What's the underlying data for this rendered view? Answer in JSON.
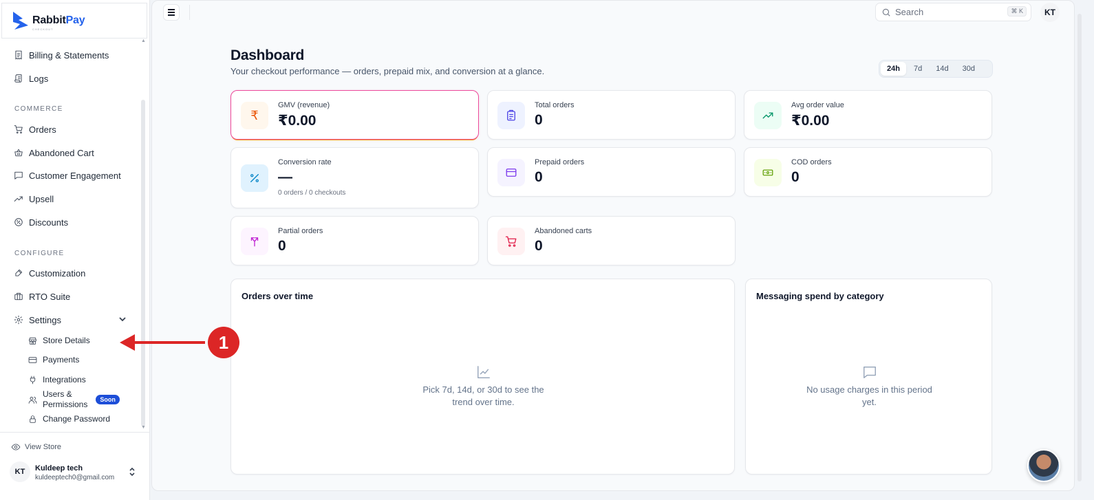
{
  "brand": {
    "name_part1": "Rabbit",
    "name_part2": "Pay",
    "tagline": "CHECKOUT"
  },
  "sidebar": {
    "top_items": [
      {
        "label": "Billing & Statements",
        "icon": "receipt-icon"
      },
      {
        "label": "Logs",
        "icon": "scroll-icon"
      }
    ],
    "commerce_label": "COMMERCE",
    "commerce_items": [
      {
        "label": "Orders",
        "icon": "cart-icon"
      },
      {
        "label": "Abandoned Cart",
        "icon": "basket-icon"
      },
      {
        "label": "Customer Engagement",
        "icon": "message-square-icon"
      },
      {
        "label": "Upsell",
        "icon": "trending-up-icon"
      },
      {
        "label": "Discounts",
        "icon": "badge-percent-icon"
      }
    ],
    "configure_label": "CONFIGURE",
    "configure_items": [
      {
        "label": "Customization",
        "icon": "brush-icon"
      },
      {
        "label": "RTO Suite",
        "icon": "briefcase-icon"
      },
      {
        "label": "Settings",
        "icon": "gear-icon"
      }
    ],
    "settings_sub": [
      {
        "label": "Store Details",
        "icon": "store-icon"
      },
      {
        "label": "Payments",
        "icon": "credit-card-icon"
      },
      {
        "label": "Integrations",
        "icon": "plug-icon"
      },
      {
        "label": "Users &",
        "label2": "Permissions",
        "icon": "users-icon",
        "badge": "Soon"
      },
      {
        "label": "Change Password",
        "icon": "lock-icon"
      }
    ],
    "view_store": "View Store",
    "user": {
      "initials": "KT",
      "name": "Kuldeep tech",
      "email": "kuldeeptech0@gmail.com"
    }
  },
  "topbar": {
    "search_placeholder": "Search",
    "search_shortcut": "⌘ K",
    "avatar_initials": "KT"
  },
  "dashboard": {
    "title": "Dashboard",
    "subtitle": "Your checkout performance — orders, prepaid mix, and conversion at a glance.",
    "ranges": [
      "24h",
      "7d",
      "14d",
      "30d"
    ],
    "active_range": "24h",
    "kpis": [
      {
        "label": "GMV (revenue)",
        "value": "₹0.00",
        "icon": "rupee-icon",
        "color": "#ea580c",
        "bg": "#fff7ed"
      },
      {
        "label": "Total orders",
        "value": "0",
        "icon": "clipboard-icon",
        "color": "#4f46e5",
        "bg": "#eef2ff"
      },
      {
        "label": "Avg order value",
        "value": "₹0.00",
        "icon": "trending-up-icon",
        "color": "#059669",
        "bg": "#ecfdf5"
      },
      {
        "label": "Conversion rate",
        "value": "—",
        "note": "0 orders / 0 checkouts",
        "icon": "percent-icon",
        "color": "#0284c7",
        "bg": "#e0f2fe"
      },
      {
        "label": "Prepaid orders",
        "value": "0",
        "icon": "credit-card-icon",
        "color": "#7c3aed",
        "bg": "#f5f3ff"
      },
      {
        "label": "COD orders",
        "value": "0",
        "icon": "banknote-icon",
        "color": "#65a30d",
        "bg": "#f7fee7"
      },
      {
        "label": "Partial orders",
        "value": "0",
        "icon": "split-icon",
        "color": "#c026d3",
        "bg": "#fdf4ff"
      },
      {
        "label": "Abandoned carts",
        "value": "0",
        "icon": "cart-icon",
        "color": "#e11d48",
        "bg": "#fff1f2"
      }
    ],
    "orders_panel": {
      "title": "Orders over time",
      "empty_line1": "Pick 7d, 14d, or 30d to see the",
      "empty_line2": "trend over time."
    },
    "messaging_panel": {
      "title": "Messaging spend by category",
      "empty_line1": "No usage charges in this period",
      "empty_line2": "yet."
    }
  },
  "annotation": {
    "marker": "1"
  }
}
